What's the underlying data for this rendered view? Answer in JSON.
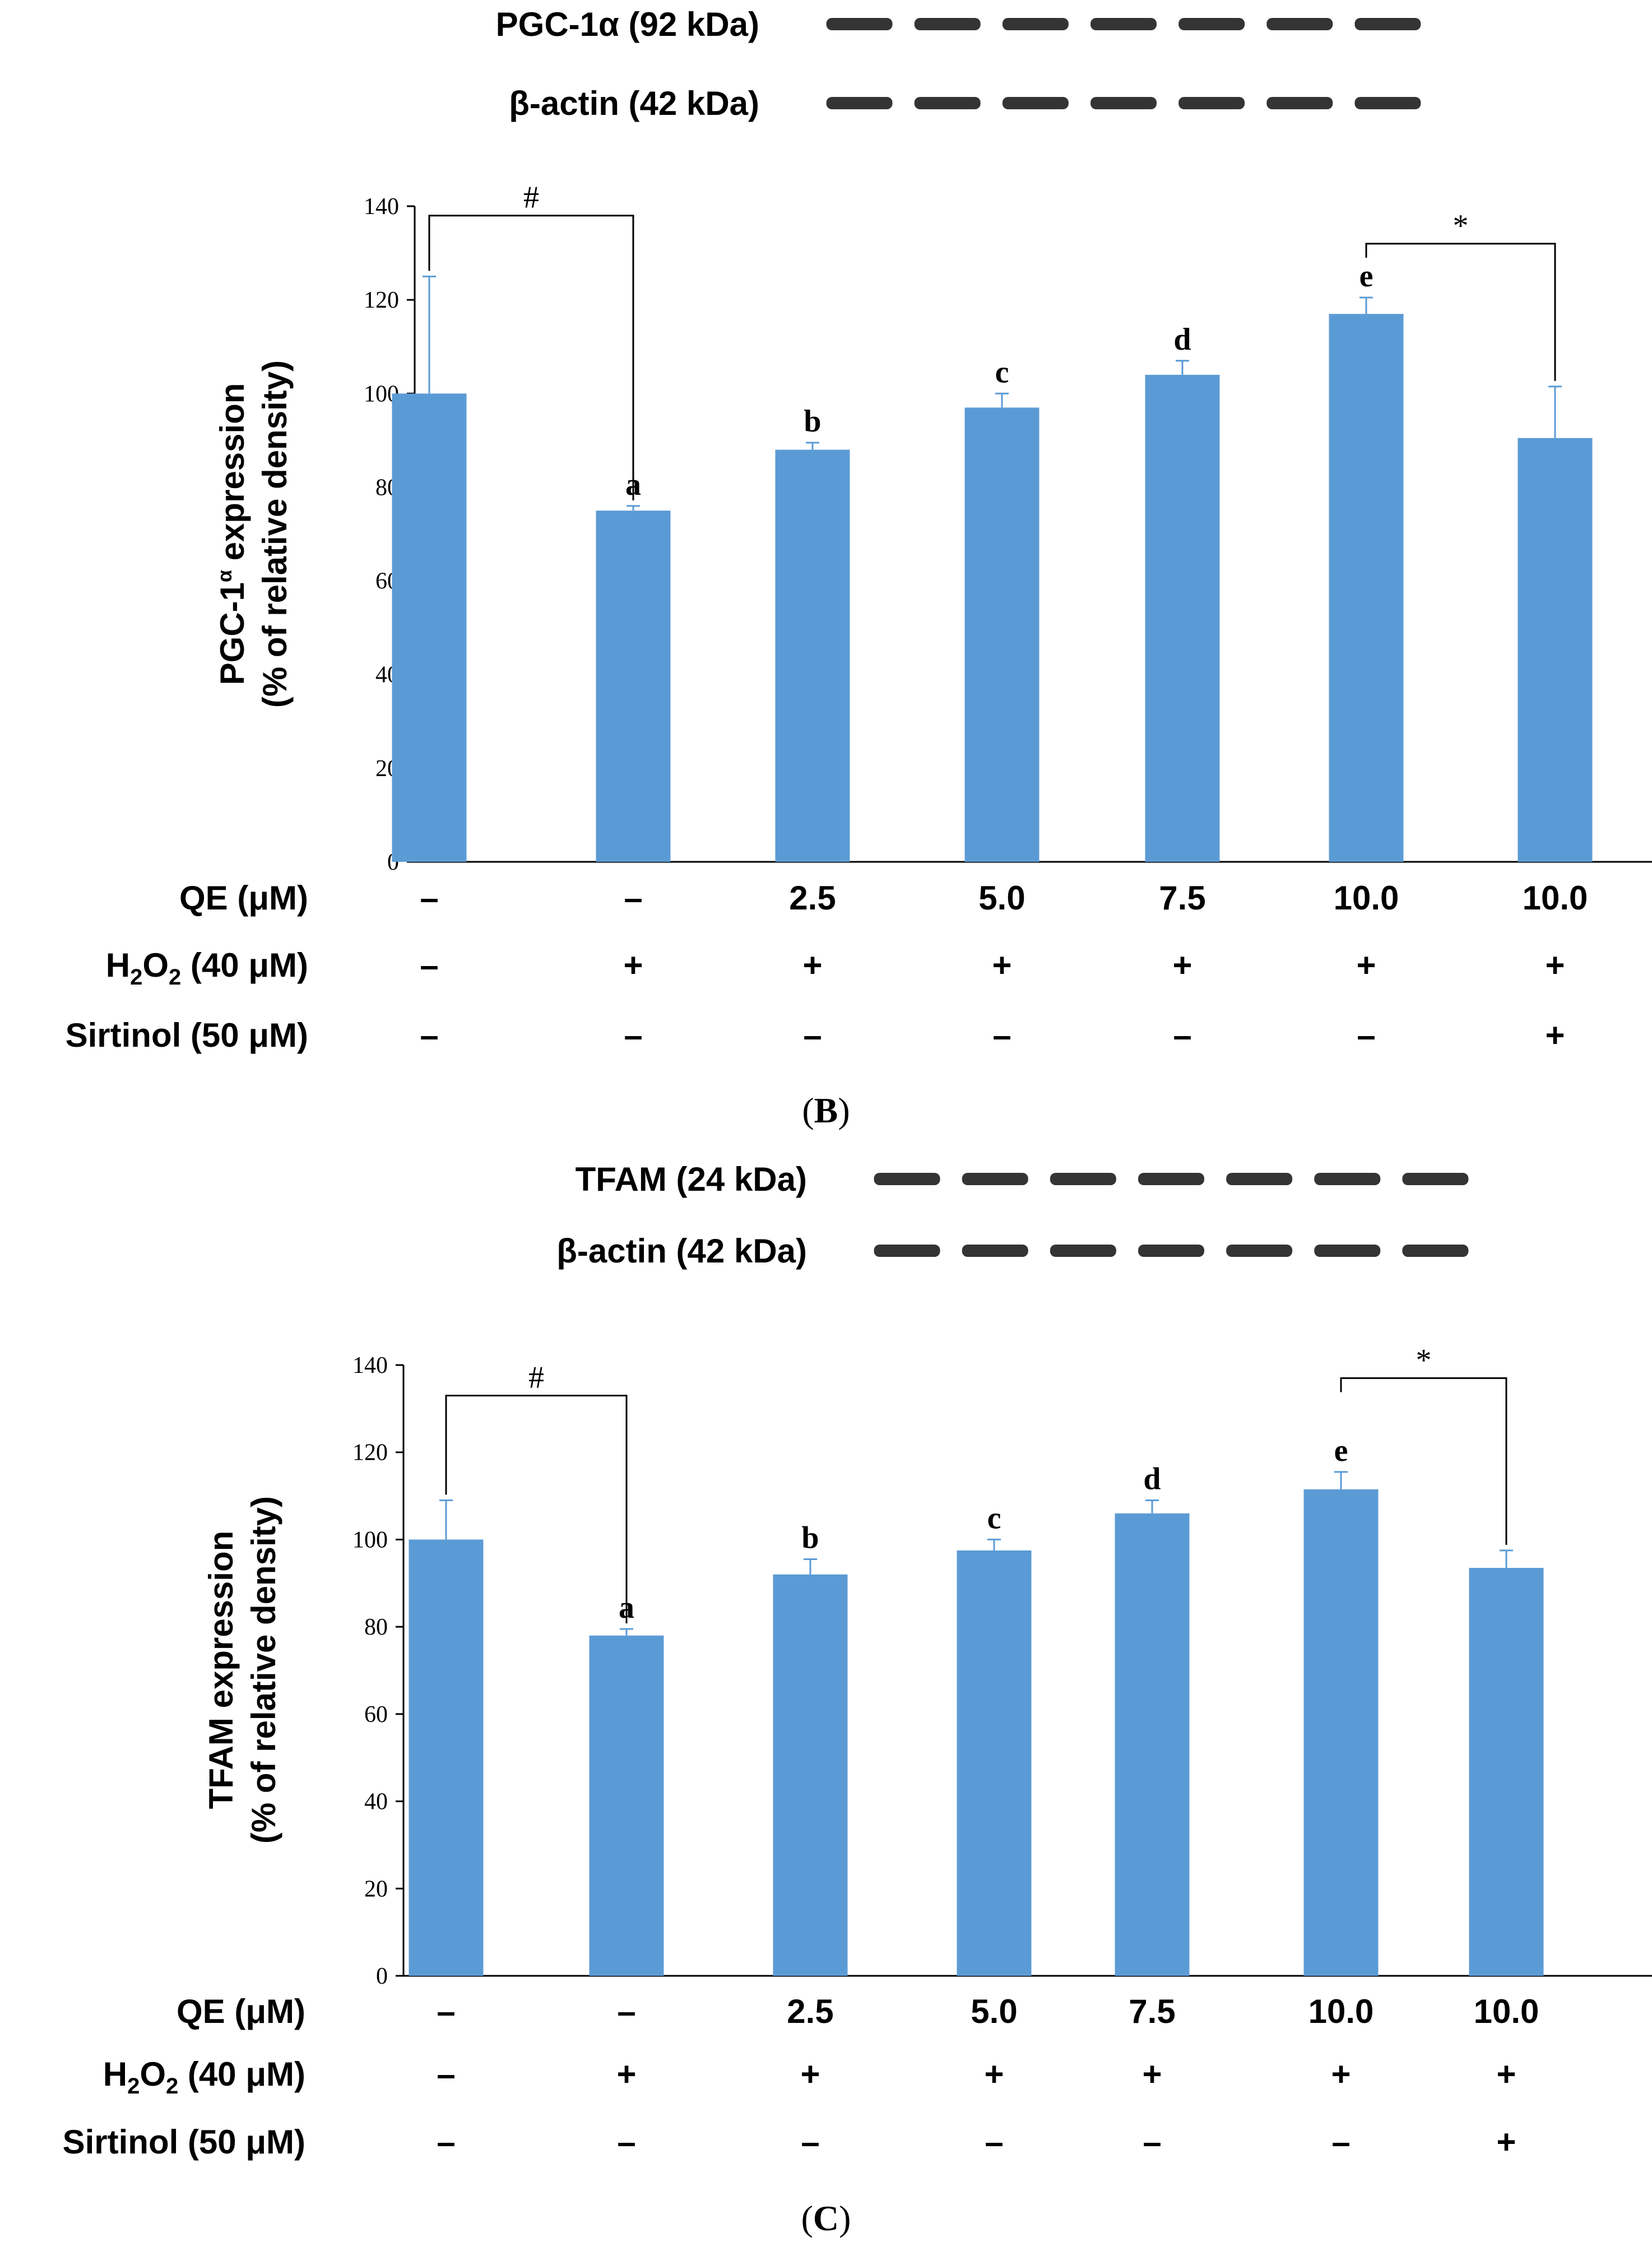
{
  "panels": [
    {
      "blot": {
        "target_label": "PGC-1α (92 kDa)",
        "control_label": "β-actin (42 kDa)"
      },
      "caption": {
        "open": "(",
        "letter": "B",
        "close": ")"
      }
    },
    {
      "blot": {
        "target_label": "TFAM   (24 kDa)",
        "control_label": "β-actin (42 kDa)"
      },
      "caption": {
        "open": "(",
        "letter": "C",
        "close": ")"
      }
    }
  ],
  "treatments": {
    "rows": [
      {
        "label_parts": [
          "QE (μM)"
        ],
        "values": [
          "–",
          "–",
          "2.5",
          "5.0",
          "7.5",
          "10.0",
          "10.0"
        ]
      },
      {
        "label_parts": [
          "H",
          "2",
          "O",
          "2",
          " (40 μM)"
        ],
        "values": [
          "–",
          "+",
          "+",
          "+",
          "+",
          "+",
          "+"
        ]
      },
      {
        "label_parts": [
          "Sirtinol (50 μM)"
        ],
        "values": [
          "–",
          "–",
          "–",
          "–",
          "–",
          "–",
          "+"
        ]
      }
    ]
  },
  "colors": {
    "bar": "#5b9bd5",
    "axis": "#000000",
    "text": "#000000",
    "band": "#111111"
  },
  "chart_data": [
    {
      "type": "bar",
      "title": "",
      "xlabel": "",
      "ylabel_line1": "PGC-1",
      "ylabel_super": "α",
      "ylabel_line1_end": " expression",
      "ylabel_line2": "(% of relative density)",
      "ylim": [
        0,
        140
      ],
      "yticks": [
        0,
        20,
        40,
        60,
        80,
        100,
        120,
        140
      ],
      "series": [
        {
          "name": "PGC-1α expression",
          "values": [
            100,
            75,
            88,
            97,
            104,
            117,
            90.5
          ]
        }
      ],
      "errors": [
        25,
        1,
        1.5,
        3,
        3,
        3.5,
        11
      ],
      "bar_labels": [
        "",
        "a",
        "b",
        "c",
        "d",
        "e",
        ""
      ],
      "brackets": [
        {
          "from": 0,
          "to": 1,
          "symbol": "#",
          "y": 138
        },
        {
          "from": 5,
          "to": 6,
          "symbol": "*",
          "y": 132
        }
      ]
    },
    {
      "type": "bar",
      "title": "",
      "xlabel": "",
      "ylabel_line1": "TFAM",
      "ylabel_super": "",
      "ylabel_line1_end": " expression",
      "ylabel_line2": "(% of relative density)",
      "ylim": [
        0,
        140
      ],
      "yticks": [
        0,
        20,
        40,
        60,
        80,
        100,
        120,
        140
      ],
      "series": [
        {
          "name": "TFAM expression",
          "values": [
            100,
            78,
            92,
            97.5,
            106,
            111.5,
            93.5
          ]
        }
      ],
      "errors": [
        9,
        1.5,
        3.5,
        2.5,
        3,
        4,
        4
      ],
      "bar_labels": [
        "",
        "a",
        "b",
        "c",
        "d",
        "e",
        ""
      ],
      "brackets": [
        {
          "from": 0,
          "to": 1,
          "symbol": "#",
          "y": 133
        },
        {
          "from": 5,
          "to": 6,
          "symbol": "*",
          "y": 137
        }
      ]
    }
  ]
}
